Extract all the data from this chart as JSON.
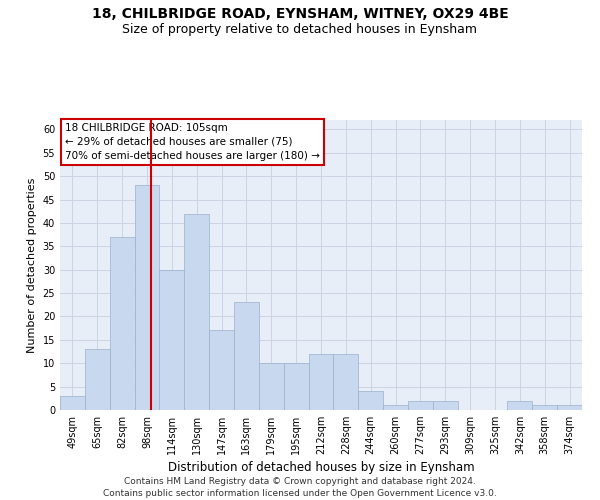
{
  "title1": "18, CHILBRIDGE ROAD, EYNSHAM, WITNEY, OX29 4BE",
  "title2": "Size of property relative to detached houses in Eynsham",
  "xlabel": "Distribution of detached houses by size in Eynsham",
  "ylabel": "Number of detached properties",
  "categories": [
    "49sqm",
    "65sqm",
    "82sqm",
    "98sqm",
    "114sqm",
    "130sqm",
    "147sqm",
    "163sqm",
    "179sqm",
    "195sqm",
    "212sqm",
    "228sqm",
    "244sqm",
    "260sqm",
    "277sqm",
    "293sqm",
    "309sqm",
    "325sqm",
    "342sqm",
    "358sqm",
    "374sqm"
  ],
  "values": [
    3,
    13,
    37,
    48,
    30,
    42,
    17,
    23,
    10,
    10,
    12,
    12,
    4,
    1,
    2,
    2,
    0,
    0,
    2,
    1,
    1
  ],
  "bar_color": "#c8d8ee",
  "bar_edge_color": "#9ab0cc",
  "bar_width": 1.0,
  "vline_color": "#cc0000",
  "vline_pos": 3.15,
  "annotation_title": "18 CHILBRIDGE ROAD: 105sqm",
  "annotation_line1": "← 29% of detached houses are smaller (75)",
  "annotation_line2": "70% of semi-detached houses are larger (180) →",
  "annotation_box_color": "#ffffff",
  "annotation_box_edge": "#cc0000",
  "ylim": [
    0,
    62
  ],
  "yticks": [
    0,
    5,
    10,
    15,
    20,
    25,
    30,
    35,
    40,
    45,
    50,
    55,
    60
  ],
  "grid_color": "#ccd4e4",
  "background_color": "#e8eef8",
  "footer1": "Contains HM Land Registry data © Crown copyright and database right 2024.",
  "footer2": "Contains public sector information licensed under the Open Government Licence v3.0.",
  "title1_fontsize": 10,
  "title2_fontsize": 9,
  "xlabel_fontsize": 8.5,
  "ylabel_fontsize": 8,
  "tick_fontsize": 7,
  "footer_fontsize": 6.5,
  "ann_fontsize": 7.5
}
